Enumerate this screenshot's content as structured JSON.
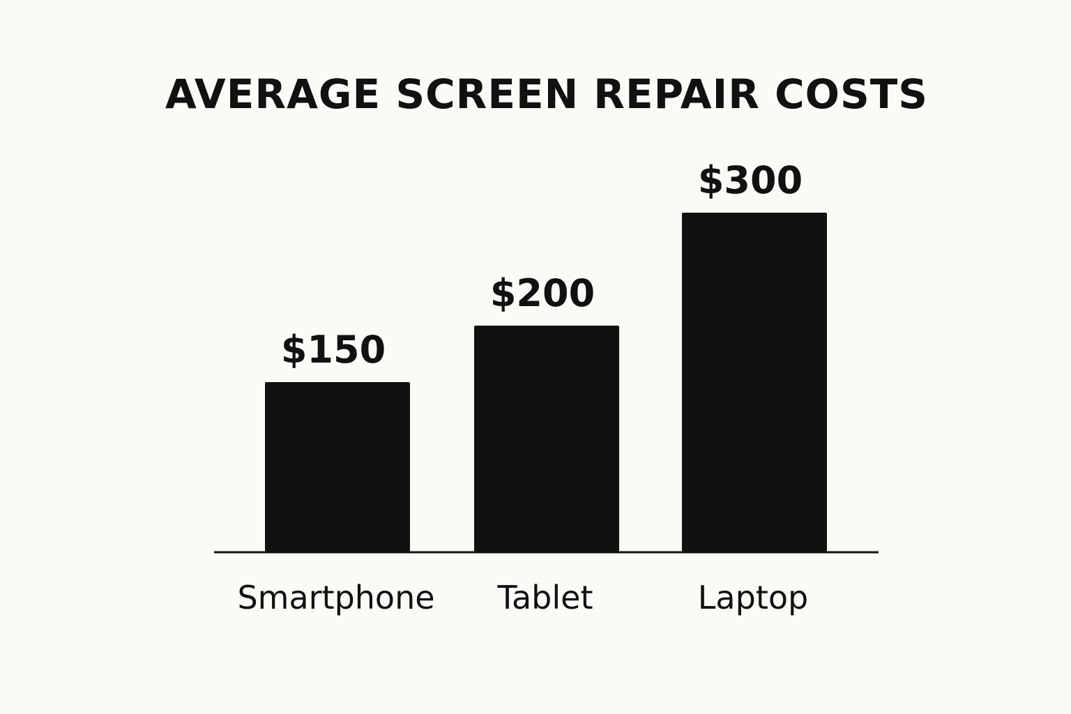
{
  "chart_data": {
    "type": "bar",
    "title": "AVERAGE SCREEN REPAIR COSTS",
    "categories": [
      "Smartphone",
      "Tablet",
      "Laptop"
    ],
    "values": [
      150,
      200,
      300
    ],
    "value_labels": [
      "$150",
      "$200",
      "$300"
    ],
    "xlabel": "",
    "ylabel": "",
    "ylim": [
      0,
      300
    ],
    "grid": false,
    "colors": {
      "bar": "#111111",
      "text": "#111111",
      "axis": "#111111",
      "background": "#fbfaf6"
    }
  }
}
